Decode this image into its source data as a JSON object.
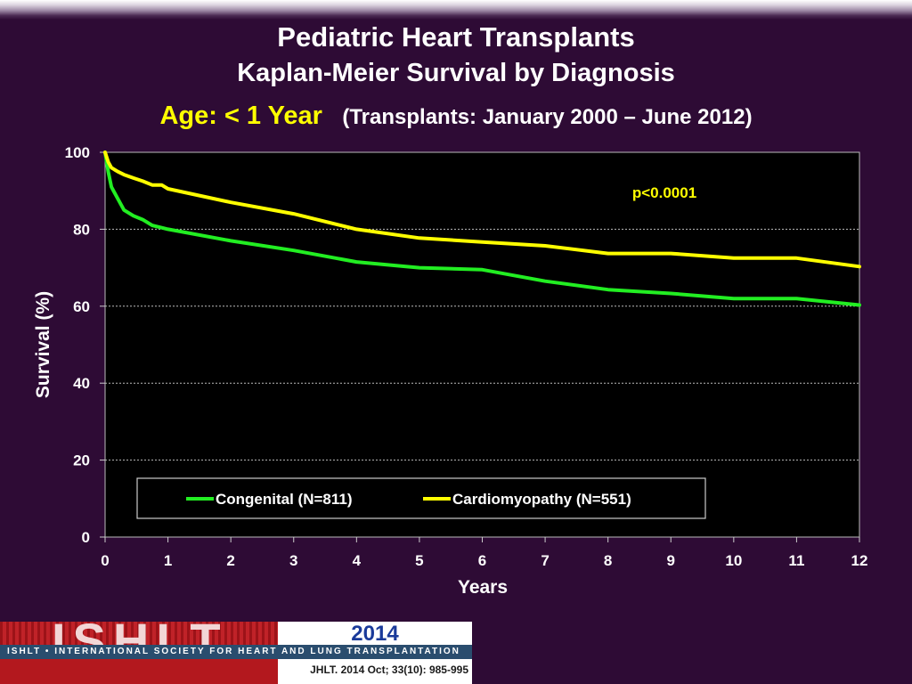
{
  "slide": {
    "title": "Pediatric Heart Transplants",
    "subtitle": "Kaplan-Meier Survival by Diagnosis",
    "age_label": "Age: < 1 Year",
    "transplant_range": "(Transplants: January 2000 – June 2012)"
  },
  "footer": {
    "logo_text": "ISHLT",
    "org_name": "ISHLT • INTERNATIONAL SOCIETY FOR HEART AND LUNG TRANSPLANTATION",
    "year": "2014",
    "citation": "JHLT. 2014 Oct; 33(10): 985-995"
  },
  "chart_data": {
    "type": "line",
    "xlabel": "Years",
    "ylabel": "Survival (%)",
    "xlim": [
      0,
      12
    ],
    "ylim": [
      0,
      100
    ],
    "xticks": [
      0,
      1,
      2,
      3,
      4,
      5,
      6,
      7,
      8,
      9,
      10,
      11,
      12
    ],
    "yticks": [
      0,
      20,
      40,
      60,
      80,
      100
    ],
    "grid": "horizontal dashed",
    "legend_position": "bottom-center",
    "annotation": "p<0.0001",
    "series": [
      {
        "name": "Congenital (N=811)",
        "color": "#22ee22",
        "x": [
          0,
          0.05,
          0.1,
          0.2,
          0.3,
          0.45,
          0.6,
          0.75,
          1,
          2,
          3,
          4,
          5,
          6,
          7,
          8,
          9,
          10,
          11,
          12
        ],
        "y": [
          100,
          95,
          91,
          88,
          85,
          83.5,
          82.5,
          81,
          80,
          77,
          74.5,
          71.5,
          70,
          69.5,
          66.5,
          64.3,
          63.3,
          62,
          62,
          60.3
        ]
      },
      {
        "name": "Cardiomyopathy (N=551)",
        "color": "#ffff00",
        "x": [
          0,
          0.05,
          0.1,
          0.2,
          0.3,
          0.45,
          0.6,
          0.75,
          0.9,
          1,
          2,
          3,
          4,
          5,
          6,
          7,
          8,
          9,
          10,
          11,
          12
        ],
        "y": [
          100,
          97.5,
          96,
          95,
          94.2,
          93.3,
          92.5,
          91.5,
          91.5,
          90.5,
          87,
          84,
          80,
          77.7,
          76.7,
          75.7,
          73.7,
          73.7,
          72.5,
          72.5,
          70.3
        ]
      }
    ]
  }
}
